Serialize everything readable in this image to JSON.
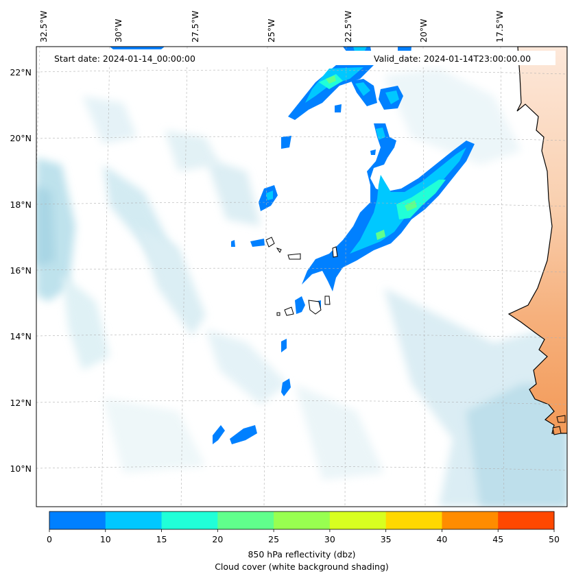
{
  "header": {
    "start_date": "Start date: 2024-01-14_00:00:00",
    "valid_date": "Valid_date: 2024-01-14T23:00:00.00"
  },
  "axes": {
    "lon_labels": [
      "32.5°W",
      "30°W",
      "27.5°W",
      "25°W",
      "22.5°W",
      "20°W",
      "17.5°W"
    ],
    "lat_labels": [
      "22°N",
      "20°N",
      "18°N",
      "16°N",
      "14°N",
      "12°N",
      "10°N"
    ]
  },
  "colorbar": {
    "ticks": [
      "0",
      "10",
      "15",
      "20",
      "25",
      "30",
      "35",
      "40",
      "45",
      "50"
    ],
    "colors": [
      "#0080ff",
      "#00c8ff",
      "#20ffd8",
      "#60ff8c",
      "#98ff50",
      "#d8ff20",
      "#ffd800",
      "#ff8c00",
      "#ff4800"
    ],
    "label_line1": "850 hPa reflectivity (dbz)",
    "label_line2": "Cloud cover (white background shading)"
  },
  "palette": {
    "cloud": "#a8d8e6",
    "land": "#f4a060",
    "coast": "#000000",
    "grid": "#b0b0b0"
  }
}
